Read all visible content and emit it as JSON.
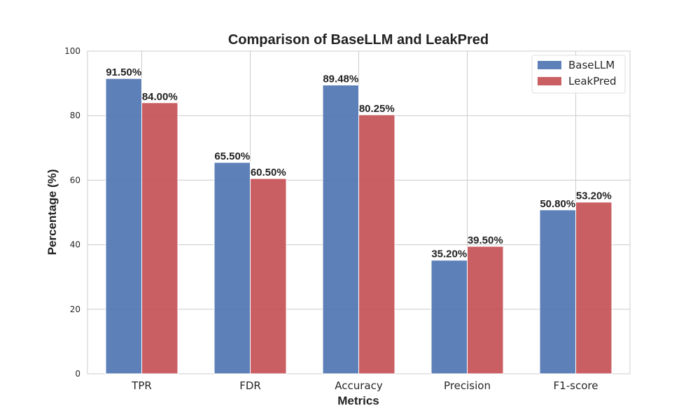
{
  "chart_data": {
    "type": "bar",
    "title": "Comparison of BaseLLM and LeakPred",
    "xlabel": "Metrics",
    "ylabel": "Percentage (%)",
    "ylim": [
      0,
      100
    ],
    "yticks": [
      0,
      20,
      40,
      60,
      80,
      100
    ],
    "grid": true,
    "legend_position": "top-right",
    "categories": [
      "TPR",
      "FDR",
      "Accuracy",
      "Precision",
      "F1-score"
    ],
    "series": [
      {
        "name": "BaseLLM",
        "color": "#4c72b0",
        "values": [
          91.5,
          65.5,
          89.48,
          35.2,
          50.8
        ],
        "labels": [
          "91.50%",
          "65.50%",
          "89.48%",
          "35.20%",
          "50.80%"
        ]
      },
      {
        "name": "LeakPred",
        "color": "#c44e52",
        "values": [
          84.0,
          60.5,
          80.25,
          39.5,
          53.2
        ],
        "labels": [
          "84.00%",
          "60.50%",
          "80.25%",
          "39.50%",
          "53.20%"
        ]
      }
    ]
  }
}
